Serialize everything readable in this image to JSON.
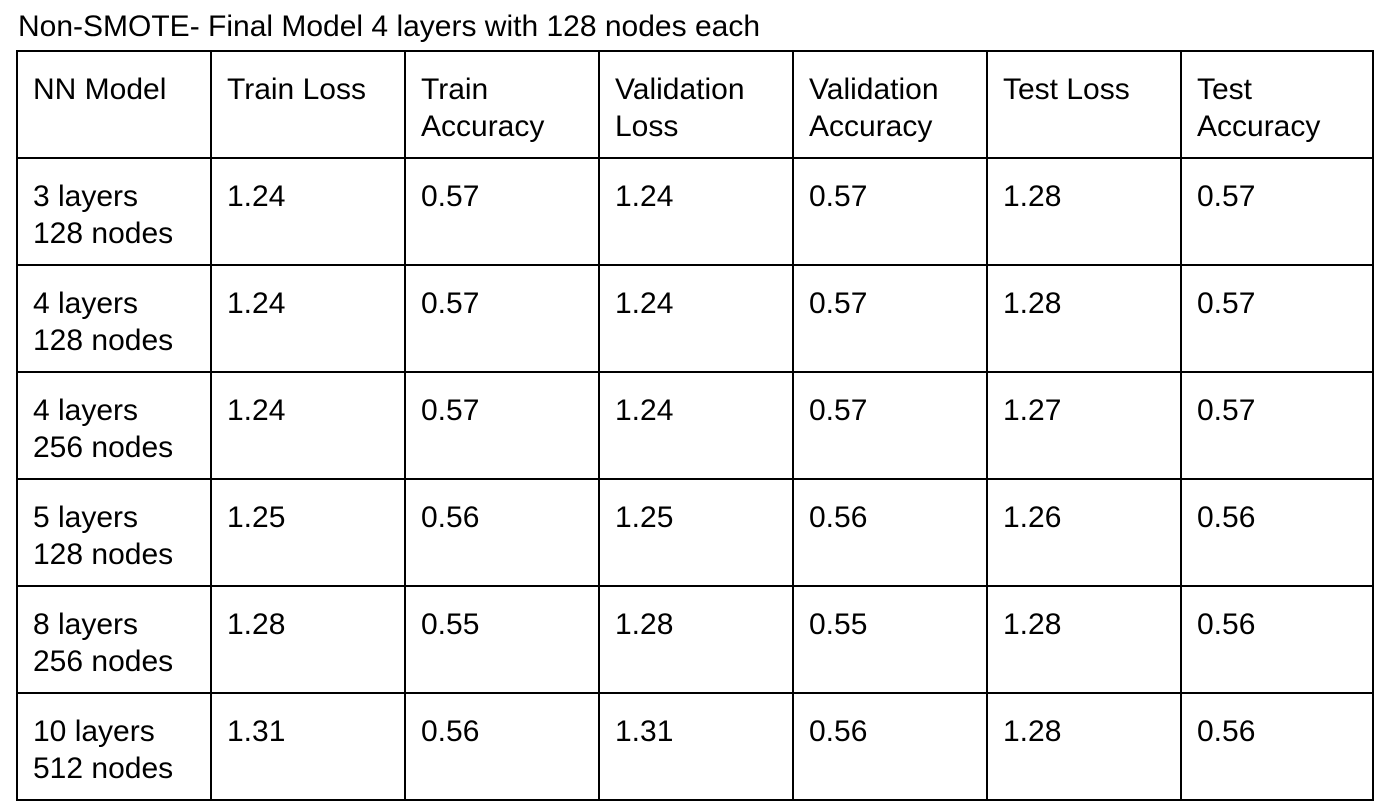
{
  "caption": "Non-SMOTE- Final Model 4 layers with 128 nodes each",
  "table": {
    "headers": [
      [
        "NN Model",
        ""
      ],
      [
        "Train Loss",
        ""
      ],
      [
        "Train",
        "Accuracy"
      ],
      [
        "Validation",
        "Loss"
      ],
      [
        "Validation",
        "Accuracy"
      ],
      [
        "Test Loss",
        ""
      ],
      [
        "Test",
        "Accuracy"
      ]
    ],
    "rows": [
      {
        "model": [
          "3 layers",
          "128 nodes"
        ],
        "train_loss": "1.24",
        "train_accuracy": "0.57",
        "validation_loss": "1.24",
        "validation_accuracy": "0.57",
        "test_loss": "1.28",
        "test_accuracy": "0.57"
      },
      {
        "model": [
          "4 layers",
          "128 nodes"
        ],
        "train_loss": "1.24",
        "train_accuracy": "0.57",
        "validation_loss": "1.24",
        "validation_accuracy": "0.57",
        "test_loss": "1.28",
        "test_accuracy": "0.57"
      },
      {
        "model": [
          "4 layers",
          "256 nodes"
        ],
        "train_loss": "1.24",
        "train_accuracy": "0.57",
        "validation_loss": "1.24",
        "validation_accuracy": "0.57",
        "test_loss": "1.27",
        "test_accuracy": "0.57"
      },
      {
        "model": [
          "5 layers",
          "128 nodes"
        ],
        "train_loss": "1.25",
        "train_accuracy": "0.56",
        "validation_loss": "1.25",
        "validation_accuracy": "0.56",
        "test_loss": "1.26",
        "test_accuracy": "0.56"
      },
      {
        "model": [
          "8 layers",
          "256 nodes"
        ],
        "train_loss": "1.28",
        "train_accuracy": "0.55",
        "validation_loss": "1.28",
        "validation_accuracy": "0.55",
        "test_loss": "1.28",
        "test_accuracy": "0.56"
      },
      {
        "model": [
          "10 layers",
          "512 nodes"
        ],
        "train_loss": "1.31",
        "train_accuracy": "0.56",
        "validation_loss": "1.31",
        "validation_accuracy": "0.56",
        "test_loss": "1.28",
        "test_accuracy": "0.56"
      }
    ]
  }
}
